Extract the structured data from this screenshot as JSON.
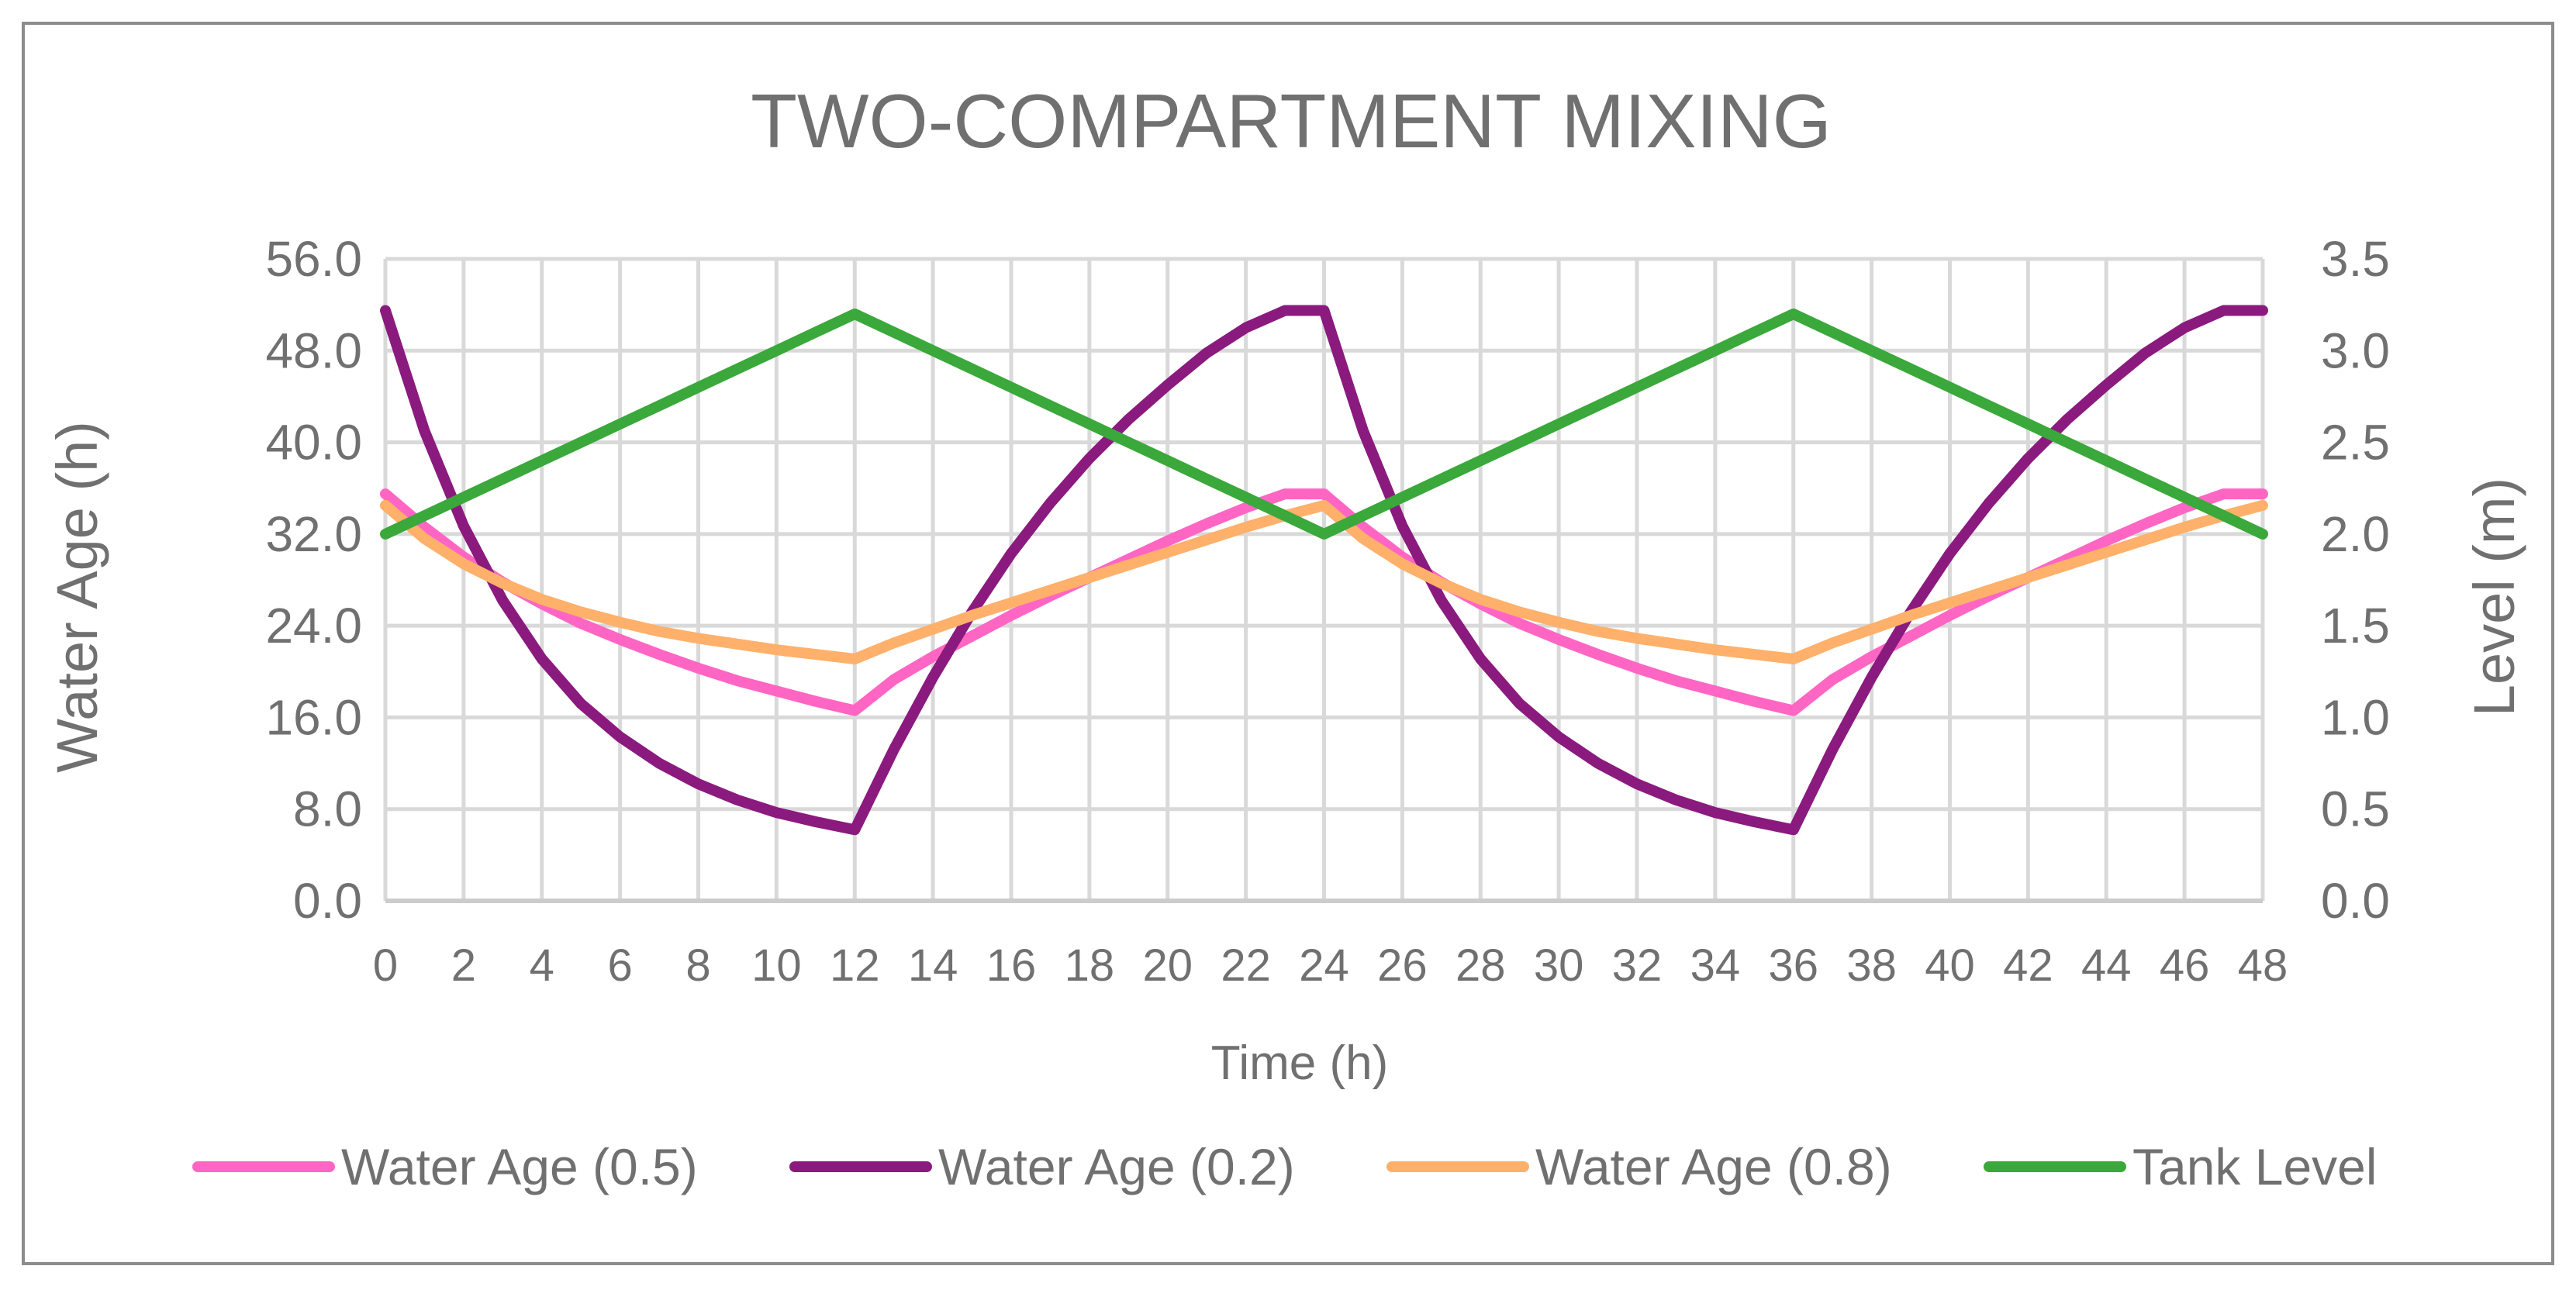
{
  "chart_data": {
    "type": "line",
    "title": "TWO-COMPARTMENT MIXING",
    "xlabel": "Time (h)",
    "ylabel": "Water Age (h)",
    "y2label": "Level (m)",
    "xlim": [
      0,
      48
    ],
    "ylim": [
      0,
      56
    ],
    "y2lim": [
      0,
      3.5
    ],
    "xticks": [
      "0",
      "2",
      "4",
      "6",
      "8",
      "10",
      "12",
      "14",
      "16",
      "18",
      "20",
      "22",
      "24",
      "26",
      "28",
      "30",
      "32",
      "34",
      "36",
      "38",
      "40",
      "42",
      "44",
      "46",
      "48"
    ],
    "yticks": [
      "0.0",
      "8.0",
      "16.0",
      "24.0",
      "32.0",
      "40.0",
      "48.0",
      "56.0"
    ],
    "y2ticks": [
      "0.0",
      "0.5",
      "1.0",
      "1.5",
      "2.0",
      "2.5",
      "3.0",
      "3.5"
    ],
    "grid": true,
    "legend_position": "bottom",
    "x": [
      0,
      1,
      2,
      3,
      4,
      5,
      6,
      7,
      8,
      9,
      10,
      11,
      12,
      13,
      14,
      15,
      16,
      17,
      18,
      19,
      20,
      21,
      22,
      23,
      24,
      25,
      26,
      27,
      28,
      29,
      30,
      31,
      32,
      33,
      34,
      35,
      36,
      37,
      38,
      39,
      40,
      41,
      42,
      43,
      44,
      45,
      46,
      47,
      48
    ],
    "series": [
      {
        "name": "Water Age (0.5)",
        "axis": "left",
        "color": "#ff66c4",
        "values": [
          35.5,
          32.6,
          30.0,
          27.8,
          25.9,
          24.2,
          22.8,
          21.5,
          20.3,
          19.2,
          18.3,
          17.4,
          16.6,
          19.3,
          21.3,
          23.1,
          24.9,
          26.6,
          28.2,
          29.8,
          31.4,
          32.9,
          34.3,
          35.5,
          35.5,
          32.6,
          30.0,
          27.8,
          25.9,
          24.2,
          22.8,
          21.5,
          20.3,
          19.2,
          18.3,
          17.4,
          16.6,
          19.3,
          21.3,
          23.1,
          24.9,
          26.6,
          28.2,
          29.8,
          31.4,
          32.9,
          34.3,
          35.5,
          35.5
        ]
      },
      {
        "name": "Water Age (0.2)",
        "axis": "left",
        "color": "#8b1a7e",
        "values": [
          51.5,
          41.0,
          32.7,
          26.2,
          21.1,
          17.2,
          14.3,
          12.0,
          10.2,
          8.8,
          7.7,
          6.9,
          6.2,
          13.2,
          19.5,
          25.2,
          30.3,
          34.7,
          38.6,
          42.0,
          45.0,
          47.8,
          50.0,
          51.5,
          51.5,
          41.0,
          32.7,
          26.2,
          21.1,
          17.2,
          14.3,
          12.0,
          10.2,
          8.8,
          7.7,
          6.9,
          6.2,
          13.2,
          19.5,
          25.2,
          30.3,
          34.7,
          38.6,
          42.0,
          45.0,
          47.8,
          50.0,
          51.5,
          51.5
        ]
      },
      {
        "name": "Water Age (0.8)",
        "axis": "left",
        "color": "#ffb06b",
        "values": [
          34.5,
          31.6,
          29.4,
          27.7,
          26.3,
          25.2,
          24.3,
          23.5,
          22.9,
          22.4,
          21.9,
          21.5,
          21.1,
          22.5,
          23.7,
          24.9,
          26.0,
          27.1,
          28.2,
          29.3,
          30.4,
          31.5,
          32.6,
          33.6,
          34.5,
          31.6,
          29.4,
          27.7,
          26.3,
          25.2,
          24.3,
          23.5,
          22.9,
          22.4,
          21.9,
          21.5,
          21.1,
          22.5,
          23.7,
          24.9,
          26.0,
          27.1,
          28.2,
          29.3,
          30.4,
          31.5,
          32.6,
          33.6,
          34.5
        ]
      },
      {
        "name": "Tank Level",
        "axis": "right",
        "color": "#3aa83a",
        "values": [
          2.0,
          2.1,
          2.2,
          2.3,
          2.4,
          2.5,
          2.6,
          2.7,
          2.8,
          2.9,
          3.0,
          3.1,
          3.2,
          3.1,
          3.0,
          2.9,
          2.8,
          2.7,
          2.6,
          2.5,
          2.4,
          2.3,
          2.2,
          2.1,
          2.0,
          2.1,
          2.2,
          2.3,
          2.4,
          2.5,
          2.6,
          2.7,
          2.8,
          2.9,
          3.0,
          3.1,
          3.2,
          3.1,
          3.0,
          2.9,
          2.8,
          2.7,
          2.6,
          2.5,
          2.4,
          2.3,
          2.2,
          2.1,
          2.0
        ]
      }
    ]
  }
}
